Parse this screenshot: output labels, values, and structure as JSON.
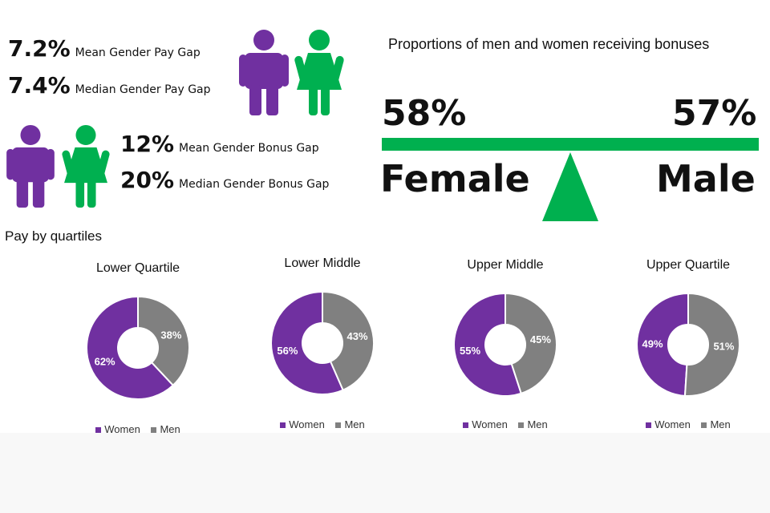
{
  "pay_gap": {
    "mean_value": "7.2%",
    "mean_label": "Mean Gender Pay Gap",
    "median_value": "7.4%",
    "median_label": "Median Gender Pay Gap"
  },
  "bonus_gap": {
    "mean_value": "12%",
    "mean_label": "Mean Gender Bonus Gap",
    "median_value": "20%",
    "median_label": "Median Gender Bonus Gap"
  },
  "bonus_receipt": {
    "title": "Proportions of men and women receiving bonuses",
    "female_pct": "58%",
    "female_label": "Female",
    "male_pct": "57%",
    "male_label": "Male"
  },
  "colors": {
    "women": "#7030a0",
    "men": "#808080",
    "female_figure": "#00b050",
    "beam": "#00b04f"
  },
  "icons": [
    "man-icon",
    "woman-icon"
  ],
  "chart_data": {
    "type": "pie",
    "title": "Pay by quartiles",
    "legend": [
      "Women",
      "Men"
    ],
    "charts": [
      {
        "title": "Lower Quartile",
        "values": [
          62,
          38
        ],
        "labels": [
          "62%",
          "38%"
        ]
      },
      {
        "title": "Lower Middle",
        "values": [
          56,
          43
        ],
        "labels": [
          "56%",
          "43%"
        ]
      },
      {
        "title": "Upper Middle",
        "values": [
          55,
          45
        ],
        "labels": [
          "55%",
          "45%"
        ]
      },
      {
        "title": "Upper Quartile",
        "values": [
          49,
          51
        ],
        "labels": [
          "49%",
          "51%"
        ]
      }
    ]
  }
}
